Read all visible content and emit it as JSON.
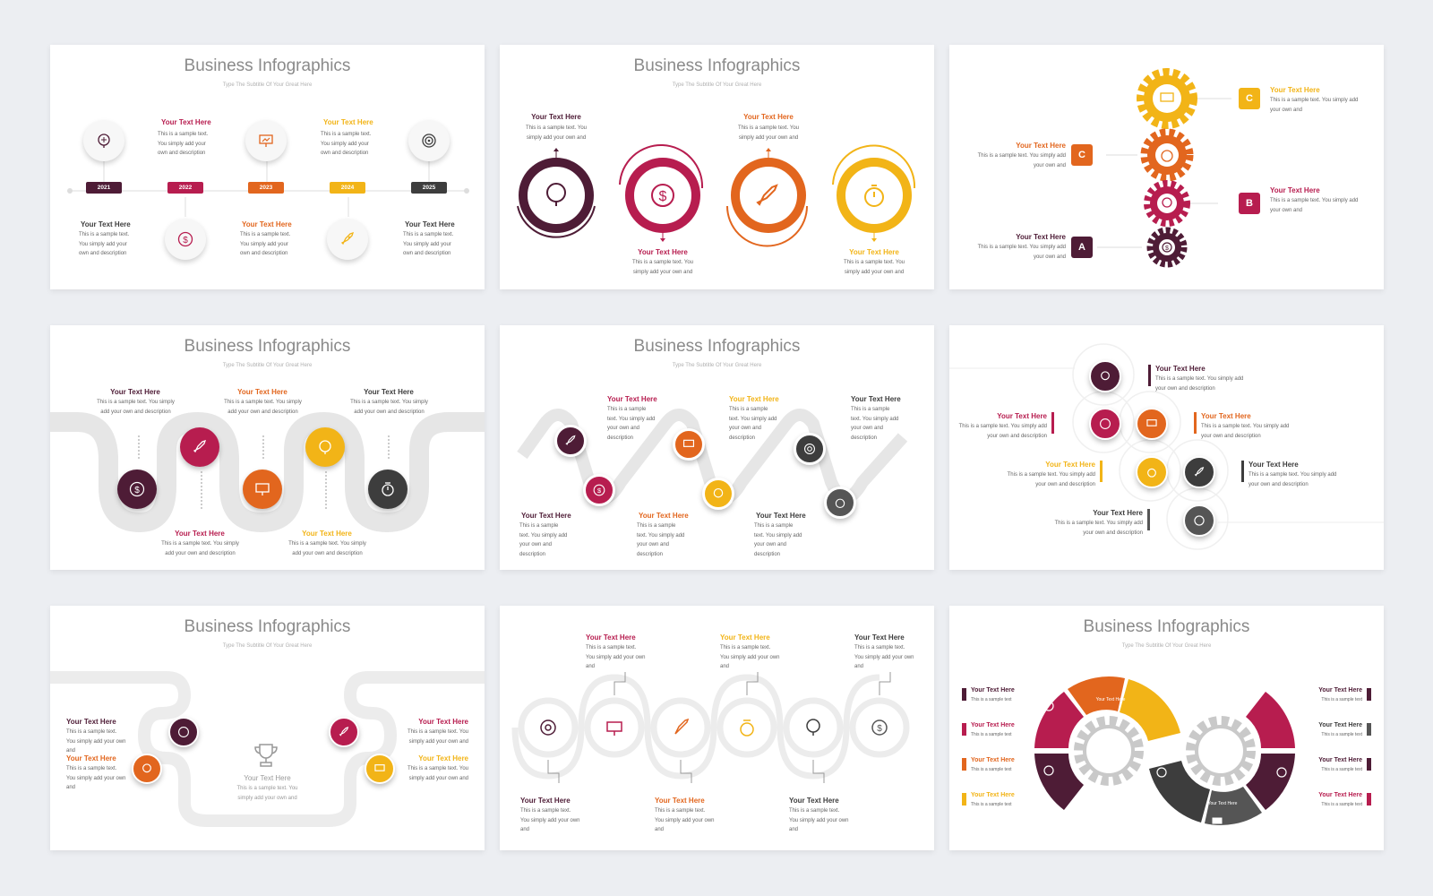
{
  "common": {
    "title": "Business Infographics",
    "subtitle": "Type The Subtitle Of Your Great Here",
    "heading": "Your Text Here",
    "body_long": "This is a sample text. You simply add your own and description",
    "body_short": "This is a sample text. You simply add your own and",
    "body_tiny": "This is a sample text"
  },
  "colors": {
    "plum": "#4e1c36",
    "crimson": "#b71d4f",
    "orange": "#e2661e",
    "yellow": "#f2b417",
    "dark": "#3d3d3d"
  },
  "slide1": {
    "years": [
      "2021",
      "2022",
      "2023",
      "2024",
      "2025"
    ]
  },
  "slide3": {
    "labels": [
      "A",
      "B",
      "C",
      "C"
    ]
  },
  "slide7": {
    "center_heading": "Your Text Here"
  },
  "icons": [
    "brain-icon",
    "dollar-icon",
    "presentation-icon",
    "rocket-icon",
    "target-icon",
    "stopwatch-icon",
    "trophy-icon",
    "chart-icon"
  ]
}
